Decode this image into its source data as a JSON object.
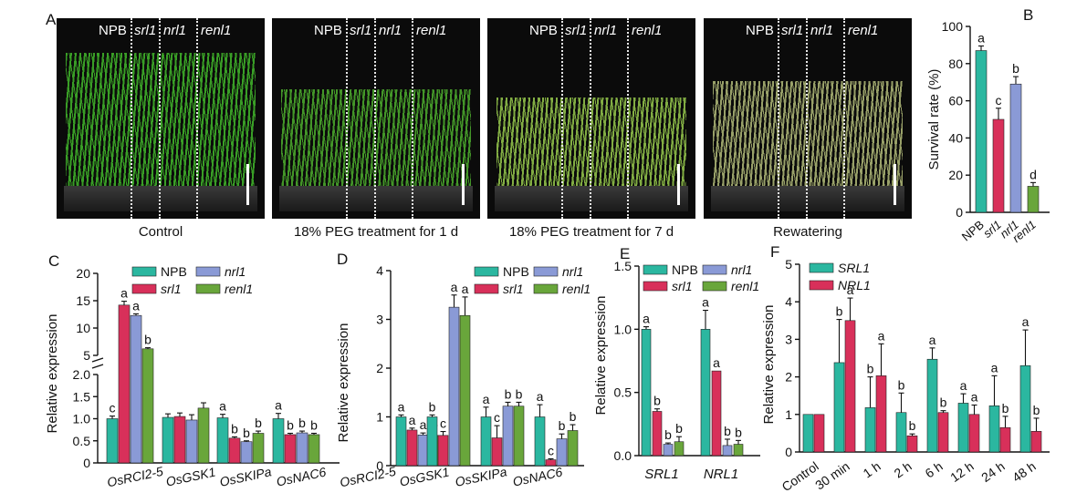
{
  "panel_a": {
    "letter": "A",
    "genotypes": [
      "NPB",
      "srl1",
      "nrl1",
      "renl1"
    ],
    "photos": [
      {
        "caption": "Control",
        "plant_color": "#3fae2a",
        "plant_height": 0.82
      },
      {
        "caption": "18% PEG treatment for 1 d",
        "plant_color": "#4aa62c",
        "plant_height": 0.6
      },
      {
        "caption": "18% PEG treatment for 7 d",
        "plant_color": "#8fbf4a",
        "plant_height": 0.55
      },
      {
        "caption": "Rewatering",
        "plant_color": "#a9b274",
        "plant_height": 0.65
      }
    ]
  },
  "chart_data": [
    {
      "panel": "B",
      "type": "bar",
      "ylabel": "Survival rate (%)",
      "ylim": [
        0,
        100
      ],
      "yticks": [
        0,
        20,
        40,
        60,
        80,
        100
      ],
      "categories": [
        "NPB",
        "srl1",
        "nrl1",
        "renl1"
      ],
      "values": [
        87,
        50,
        69,
        14
      ],
      "errors": [
        2.5,
        6,
        4,
        2
      ],
      "letters": [
        "a",
        "c",
        "b",
        "d"
      ],
      "colors": [
        "#2bb7a0",
        "#d8305a",
        "#8a9ad6",
        "#69a63b"
      ]
    },
    {
      "panel": "C",
      "type": "bar",
      "ylabel": "Relative expression",
      "yticks": [
        "0",
        "0.5",
        "1.0",
        "1.5",
        "2.0",
        "5",
        "10",
        "15",
        "20"
      ],
      "categories": [
        "OsRCI2-5",
        "OsGSK1",
        "OsSKIPa",
        "OsNAC6"
      ],
      "series": [
        {
          "name": "NPB",
          "values": [
            1.0,
            1.03,
            1.02,
            1.0
          ],
          "errors": [
            0.06,
            0.08,
            0.08,
            0.12
          ],
          "letters": [
            "c",
            "",
            "a",
            "a"
          ]
        },
        {
          "name": "srl1",
          "values": [
            14.2,
            1.05,
            0.56,
            0.64
          ],
          "errors": [
            0.7,
            0.08,
            0.03,
            0.03
          ],
          "letters": [
            "a",
            "",
            "b",
            "b"
          ]
        },
        {
          "name": "nrl1",
          "values": [
            12.3,
            0.97,
            0.48,
            0.68
          ],
          "errors": [
            0.3,
            0.12,
            0.02,
            0.04
          ],
          "letters": [
            "a",
            "",
            "b",
            "b"
          ]
        },
        {
          "name": "renl1",
          "values": [
            6.2,
            1.24,
            0.67,
            0.64
          ],
          "errors": [
            0.2,
            0.12,
            0.05,
            0.03
          ],
          "letters": [
            "b",
            "",
            "b",
            "b"
          ]
        }
      ],
      "colors": [
        "#2bb7a0",
        "#d8305a",
        "#8a9ad6",
        "#69a63b"
      ]
    },
    {
      "panel": "D",
      "type": "bar",
      "ylabel": "Relative expression",
      "ylim": [
        0,
        4
      ],
      "yticks": [
        0,
        1,
        2,
        3,
        4
      ],
      "categories": [
        "OsRCI2-5",
        "OsGSK1",
        "OsSKIPa",
        "OsNAC6"
      ],
      "series": [
        {
          "name": "NPB",
          "values": [
            1.0,
            1.0,
            1.0,
            1.0
          ],
          "errors": [
            0.04,
            0.04,
            0.2,
            0.25
          ],
          "letters": [
            "a",
            "b",
            "a",
            "a"
          ]
        },
        {
          "name": "srl1",
          "values": [
            0.73,
            0.62,
            0.57,
            0.12
          ],
          "errors": [
            0.04,
            0.08,
            0.25,
            0.02
          ],
          "letters": [
            "a",
            "c",
            "c",
            "c"
          ]
        },
        {
          "name": "nrl1",
          "values": [
            0.63,
            3.25,
            1.22,
            0.55
          ],
          "errors": [
            0.04,
            0.25,
            0.08,
            0.1
          ],
          "letters": [
            "a",
            "a",
            "b",
            "b"
          ]
        },
        {
          "name": "renl1",
          "values": [
            0.62,
            3.08,
            1.22,
            0.72
          ],
          "errors": [
            0.12,
            0.38,
            0.08,
            0.12
          ],
          "letters": [
            "a",
            "a",
            "b",
            "b"
          ]
        }
      ],
      "colors": [
        "#2bb7a0",
        "#d8305a",
        "#8a9ad6",
        "#69a63b"
      ]
    },
    {
      "panel": "E",
      "type": "bar",
      "ylabel": "Relative expression",
      "ylim": [
        0,
        1.5
      ],
      "yticks": [
        "0.0",
        "0.5",
        "1.0",
        "1.5"
      ],
      "categories": [
        "SRL1",
        "NRL1"
      ],
      "series": [
        {
          "name": "NPB",
          "values": [
            1.0,
            1.0
          ],
          "errors": [
            0.02,
            0.15
          ],
          "letters": [
            "a",
            "a"
          ]
        },
        {
          "name": "srl1",
          "values": [
            0.35,
            0.67
          ],
          "errors": [
            0.02,
            0.0
          ],
          "letters": [
            "b",
            "a"
          ]
        },
        {
          "name": "nrl1",
          "values": [
            0.09,
            0.08
          ],
          "errors": [
            0.01,
            0.05
          ],
          "letters": [
            "b",
            "b"
          ]
        },
        {
          "name": "renl1",
          "values": [
            0.11,
            0.09
          ],
          "errors": [
            0.04,
            0.03
          ],
          "letters": [
            "b",
            "b"
          ]
        }
      ],
      "colors": [
        "#2bb7a0",
        "#d8305a",
        "#8a9ad6",
        "#69a63b"
      ]
    },
    {
      "panel": "F",
      "type": "bar",
      "ylabel": "Relative expression",
      "ylim": [
        0,
        5
      ],
      "yticks": [
        0,
        1,
        2,
        3,
        4,
        5
      ],
      "categories": [
        "Control",
        "30 min",
        "1 h",
        "2 h",
        "6 h",
        "12 h",
        "24 h",
        "48 h"
      ],
      "series": [
        {
          "name": "SRL1",
          "values": [
            1.0,
            2.38,
            1.18,
            1.05,
            2.47,
            1.3,
            1.23,
            2.3
          ],
          "errors": [
            0,
            1.15,
            0.82,
            0.52,
            0.3,
            0.25,
            0.8,
            0.95
          ],
          "letters": [
            "",
            "b",
            "b",
            "b",
            "a",
            "a",
            "a",
            "a"
          ]
        },
        {
          "name": "NRL1",
          "values": [
            1.0,
            3.5,
            2.03,
            0.43,
            1.05,
            1.0,
            0.65,
            0.55
          ],
          "errors": [
            0,
            0.6,
            0.85,
            0.05,
            0.05,
            0.25,
            0.3,
            0.35
          ],
          "letters": [
            "",
            "a",
            "a",
            "b",
            "b",
            "a",
            "b",
            "b"
          ]
        }
      ],
      "colors": [
        "#2bb7a0",
        "#d8305a"
      ]
    }
  ]
}
